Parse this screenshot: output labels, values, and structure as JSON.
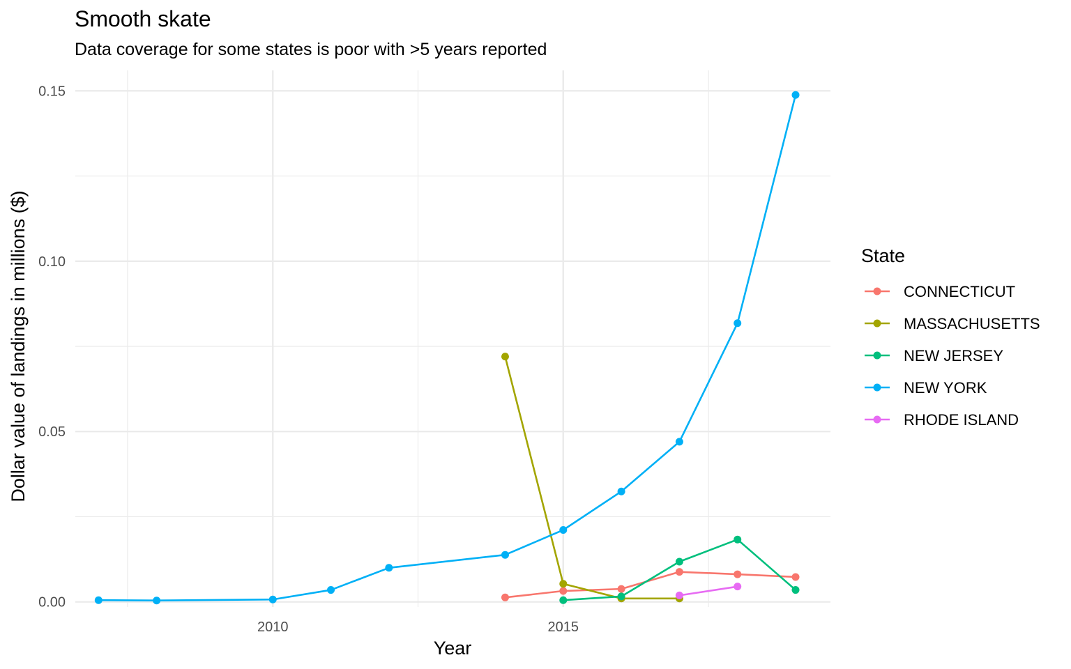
{
  "chart_data": {
    "type": "line",
    "title": "Smooth skate",
    "subtitle": "Data coverage for some states is poor with >5 years reported",
    "xlabel": "Year",
    "ylabel": "Dollar value of landings in millions ($)",
    "xlim": [
      2006.6,
      2019.6
    ],
    "ylim": [
      -0.0015,
      0.156
    ],
    "x_ticks": [
      2010,
      2015
    ],
    "x_tick_labels": [
      "2010",
      "2015"
    ],
    "y_ticks": [
      0.0,
      0.05,
      0.1,
      0.15
    ],
    "y_tick_labels": [
      "0.00",
      "0.05",
      "0.10",
      "0.15"
    ],
    "grid": true,
    "legend": {
      "title": "State",
      "position": "right"
    },
    "series": [
      {
        "name": "CONNECTICUT",
        "color": "#F8766D",
        "points": [
          [
            2014,
            0.0013
          ],
          [
            2015,
            0.0032
          ],
          [
            2016,
            0.0038
          ],
          [
            2017,
            0.0088
          ],
          [
            2018,
            0.0081
          ],
          [
            2019,
            0.0073
          ]
        ]
      },
      {
        "name": "MASSACHUSETTS",
        "color": "#A3A500",
        "points": [
          [
            2014,
            0.072
          ],
          [
            2015,
            0.0053
          ],
          [
            2016,
            0.001
          ],
          [
            2017,
            0.001
          ]
        ]
      },
      {
        "name": "NEW JERSEY",
        "color": "#00BF7D",
        "points": [
          [
            2015,
            0.0005
          ],
          [
            2016,
            0.0016
          ],
          [
            2017,
            0.0118
          ],
          [
            2018,
            0.0183
          ],
          [
            2019,
            0.0035
          ]
        ]
      },
      {
        "name": "NEW YORK",
        "color": "#00B0F6",
        "points": [
          [
            2007,
            0.0005
          ],
          [
            2008,
            0.0004
          ],
          [
            2010,
            0.0007
          ],
          [
            2011,
            0.0035
          ],
          [
            2012,
            0.01
          ],
          [
            2014,
            0.0138
          ],
          [
            2015,
            0.0211
          ],
          [
            2016,
            0.0324
          ],
          [
            2017,
            0.047
          ],
          [
            2018,
            0.0818
          ],
          [
            2019,
            0.1488
          ]
        ]
      },
      {
        "name": "RHODE ISLAND",
        "color": "#E76BF3",
        "points": [
          [
            2017,
            0.0019
          ],
          [
            2018,
            0.0045
          ]
        ]
      }
    ]
  }
}
